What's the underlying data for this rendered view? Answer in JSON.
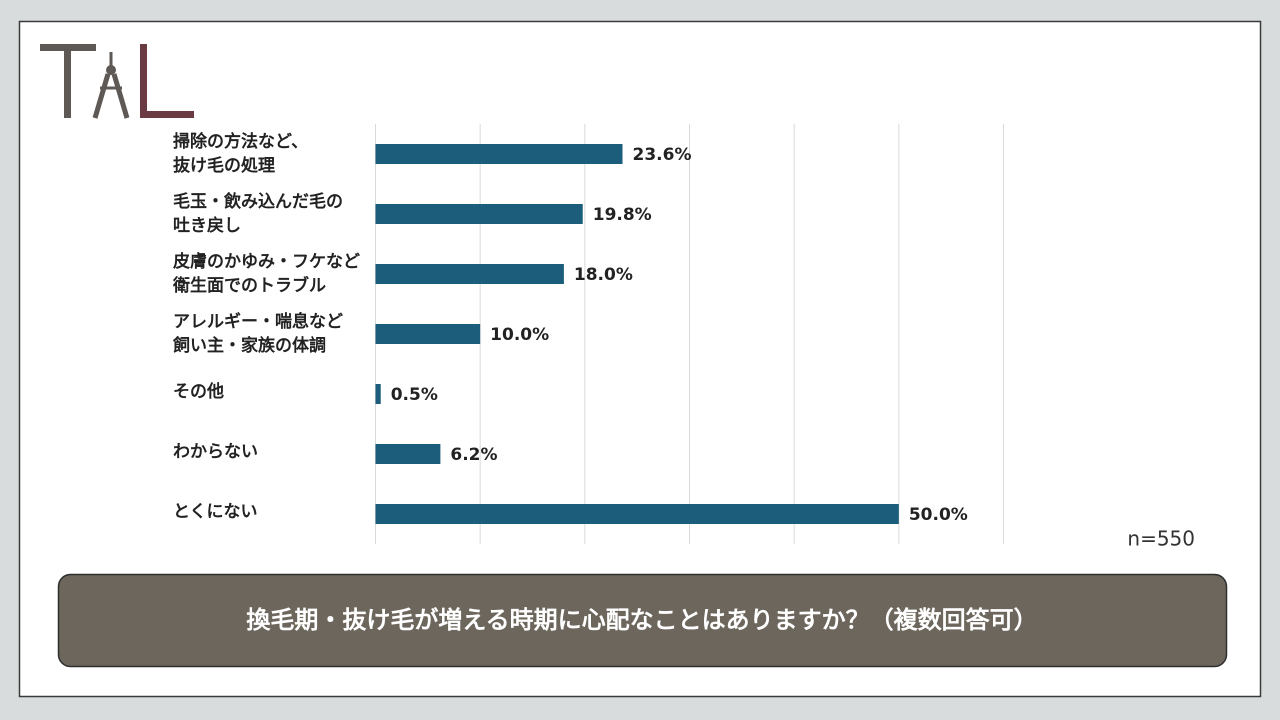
{
  "chart_data": {
    "type": "bar",
    "orientation": "horizontal",
    "categories": [
      [
        "掃除の方法など、",
        "抜け毛の処理"
      ],
      [
        "毛玉・飲み込んだ毛の",
        "吐き戻し"
      ],
      [
        "皮膚のかゆみ・フケなど",
        "衛生面でのトラブル"
      ],
      [
        "アレルギー・喘息など",
        "飼い主・家族の体調"
      ],
      [
        "その他"
      ],
      [
        "わからない"
      ],
      [
        "とくにない"
      ]
    ],
    "values": [
      23.6,
      19.8,
      18.0,
      10.0,
      0.5,
      6.2,
      50.0
    ],
    "value_labels": [
      "23.6%",
      "19.8%",
      "18.0%",
      "10.0%",
      "0.5%",
      "6.2%",
      "50.0%"
    ],
    "color": "#1c5d7c",
    "xlim": [
      0,
      60
    ],
    "xticks": [
      0,
      10,
      20,
      30,
      40,
      50,
      60
    ],
    "grid": true,
    "note": "n=550",
    "title": "換毛期・抜け毛が増える時期に心配なことはありますか？（複数回答可）"
  }
}
